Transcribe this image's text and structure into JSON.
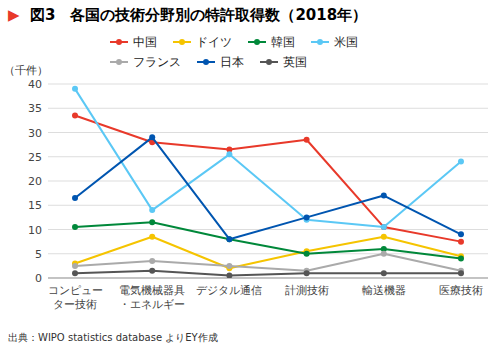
{
  "chart_data": {
    "type": "line",
    "title": "図3　各国の技術分野別の特許取得数（2018年）",
    "annotations": [
      {
        "text": "▶",
        "color": "#e8392a"
      }
    ],
    "ylabel": "（千件）",
    "source": "出典：WIPO statistics database よりEY作成",
    "categories": [
      "コンピュー\nター技術",
      "電気機械器具\n・エネルギー",
      "デジタル通信",
      "計測技術",
      "輸送機器",
      "医療技術"
    ],
    "ylim": [
      0,
      40
    ],
    "yticks": [
      0,
      5,
      10,
      15,
      20,
      25,
      30,
      35,
      40
    ],
    "grid": true,
    "legend": "top",
    "marker": "circle",
    "line_style": "solid",
    "series": [
      {
        "name": "中国",
        "color": "#e8392a",
        "values": [
          33.5,
          28.0,
          26.5,
          28.5,
          10.5,
          7.5
        ]
      },
      {
        "name": "ドイツ",
        "color": "#f5c400",
        "values": [
          3.0,
          8.5,
          2.0,
          5.5,
          8.5,
          4.5
        ]
      },
      {
        "name": "韓国",
        "color": "#00883a",
        "values": [
          10.5,
          11.5,
          8.0,
          5.0,
          6.0,
          4.0
        ]
      },
      {
        "name": "米国",
        "color": "#5bc8f5",
        "values": [
          39.0,
          14.0,
          25.5,
          12.0,
          10.5,
          24.0
        ]
      },
      {
        "name": "フランス",
        "color": "#aaaaaa",
        "values": [
          2.5,
          3.5,
          2.5,
          1.5,
          5.0,
          1.5
        ]
      },
      {
        "name": "日本",
        "color": "#0055b0",
        "values": [
          16.5,
          29.0,
          8.0,
          12.5,
          17.0,
          9.0
        ]
      },
      {
        "name": "英国",
        "color": "#555555",
        "values": [
          1.0,
          1.5,
          0.5,
          1.0,
          1.0,
          1.0
        ]
      }
    ]
  }
}
